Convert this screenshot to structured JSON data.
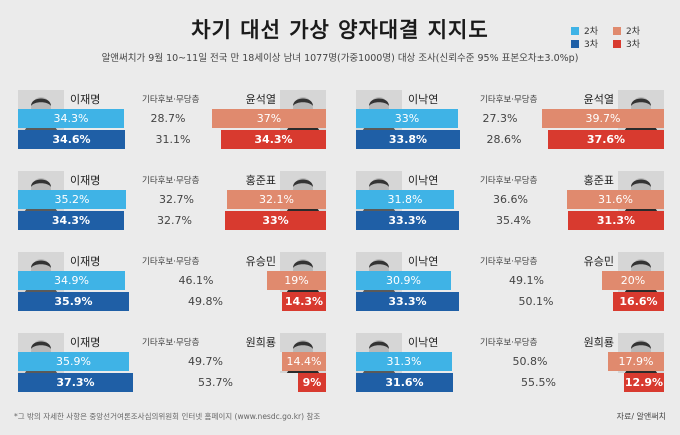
{
  "title": "차기 대선 가상 양자대결 지지도",
  "subtitle": "알앤써치가 9월 10~11일 전국 만 18세이상 남녀 1077명(가중1000명) 대상 조사(신뢰수준 95% 표본오차±3.0%p)",
  "legend": {
    "left_2": "2차",
    "left_3": "3차",
    "right_2": "2차",
    "right_3": "3차"
  },
  "colors": {
    "left_2": "#3fb3e6",
    "left_3": "#1f5fa6",
    "right_2": "#e08a6e",
    "right_3": "#d83a2f",
    "middle": "#ebebeb"
  },
  "middle_label": "기타후보·무당층",
  "chart_data": [
    {
      "type": "bar",
      "left": "이재명",
      "right": "윤석열",
      "categories": [
        "2차",
        "3차"
      ],
      "series": [
        {
          "name": "이재명",
          "values": [
            34.3,
            34.6
          ]
        },
        {
          "name": "기타후보·무당층",
          "values": [
            28.7,
            31.1
          ]
        },
        {
          "name": "윤석열",
          "values": [
            37,
            34.3
          ]
        }
      ],
      "labels": {
        "left": [
          "34.3%",
          "34.6%"
        ],
        "middle": [
          "28.7%",
          "31.1%"
        ],
        "right": [
          "37%",
          "34.3%"
        ]
      }
    },
    {
      "type": "bar",
      "left": "이낙연",
      "right": "윤석열",
      "categories": [
        "2차",
        "3차"
      ],
      "series": [
        {
          "name": "이낙연",
          "values": [
            33,
            33.8
          ]
        },
        {
          "name": "기타후보·무당층",
          "values": [
            27.3,
            28.6
          ]
        },
        {
          "name": "윤석열",
          "values": [
            39.7,
            37.6
          ]
        }
      ],
      "labels": {
        "left": [
          "33%",
          "33.8%"
        ],
        "middle": [
          "27.3%",
          "28.6%"
        ],
        "right": [
          "39.7%",
          "37.6%"
        ]
      }
    },
    {
      "type": "bar",
      "left": "이재명",
      "right": "홍준표",
      "categories": [
        "2차",
        "3차"
      ],
      "series": [
        {
          "name": "이재명",
          "values": [
            35.2,
            34.3
          ]
        },
        {
          "name": "기타후보·무당층",
          "values": [
            32.7,
            32.7
          ]
        },
        {
          "name": "홍준표",
          "values": [
            32.1,
            33
          ]
        }
      ],
      "labels": {
        "left": [
          "35.2%",
          "34.3%"
        ],
        "middle": [
          "32.7%",
          "32.7%"
        ],
        "right": [
          "32.1%",
          "33%"
        ]
      }
    },
    {
      "type": "bar",
      "left": "이낙연",
      "right": "홍준표",
      "categories": [
        "2차",
        "3차"
      ],
      "series": [
        {
          "name": "이낙연",
          "values": [
            31.8,
            33.3
          ]
        },
        {
          "name": "기타후보·무당층",
          "values": [
            36.6,
            35.4
          ]
        },
        {
          "name": "홍준표",
          "values": [
            31.6,
            31.3
          ]
        }
      ],
      "labels": {
        "left": [
          "31.8%",
          "33.3%"
        ],
        "middle": [
          "36.6%",
          "35.4%"
        ],
        "right": [
          "31.6%",
          "31.3%"
        ]
      }
    },
    {
      "type": "bar",
      "left": "이재명",
      "right": "유승민",
      "categories": [
        "2차",
        "3차"
      ],
      "series": [
        {
          "name": "이재명",
          "values": [
            34.9,
            35.9
          ]
        },
        {
          "name": "기타후보·무당층",
          "values": [
            46.1,
            49.8
          ]
        },
        {
          "name": "유승민",
          "values": [
            19,
            14.3
          ]
        }
      ],
      "labels": {
        "left": [
          "34.9%",
          "35.9%"
        ],
        "middle": [
          "46.1%",
          "49.8%"
        ],
        "right": [
          "19%",
          "14.3%"
        ]
      }
    },
    {
      "type": "bar",
      "left": "이낙연",
      "right": "유승민",
      "categories": [
        "2차",
        "3차"
      ],
      "series": [
        {
          "name": "이낙연",
          "values": [
            30.9,
            33.3
          ]
        },
        {
          "name": "기타후보·무당층",
          "values": [
            49.1,
            50.1
          ]
        },
        {
          "name": "유승민",
          "values": [
            20,
            16.6
          ]
        }
      ],
      "labels": {
        "left": [
          "30.9%",
          "33.3%"
        ],
        "middle": [
          "49.1%",
          "50.1%"
        ],
        "right": [
          "20%",
          "16.6%"
        ]
      }
    },
    {
      "type": "bar",
      "left": "이재명",
      "right": "원희룡",
      "categories": [
        "2차",
        "3차"
      ],
      "series": [
        {
          "name": "이재명",
          "values": [
            35.9,
            37.3
          ]
        },
        {
          "name": "기타후보·무당층",
          "values": [
            49.7,
            53.7
          ]
        },
        {
          "name": "원희룡",
          "values": [
            14.4,
            9
          ]
        }
      ],
      "labels": {
        "left": [
          "35.9%",
          "37.3%"
        ],
        "middle": [
          "49.7%",
          "53.7%"
        ],
        "right": [
          "14.4%",
          "9%"
        ]
      }
    },
    {
      "type": "bar",
      "left": "이낙연",
      "right": "원희룡",
      "categories": [
        "2차",
        "3차"
      ],
      "series": [
        {
          "name": "이낙연",
          "values": [
            31.3,
            31.6
          ]
        },
        {
          "name": "기타후보·무당층",
          "values": [
            50.8,
            55.5
          ]
        },
        {
          "name": "원희룡",
          "values": [
            17.9,
            12.9
          ]
        }
      ],
      "labels": {
        "left": [
          "31.3%",
          "31.6%"
        ],
        "middle": [
          "50.8%",
          "55.5%"
        ],
        "right": [
          "17.9%",
          "12.9%"
        ]
      }
    }
  ],
  "footnote": "*그 밖의 자세한 사항은 중앙선거여론조사심의위원회 인터넷 홈페이지 (www.nesdc.go.kr) 참조",
  "source": "자료/ 알앤써치"
}
